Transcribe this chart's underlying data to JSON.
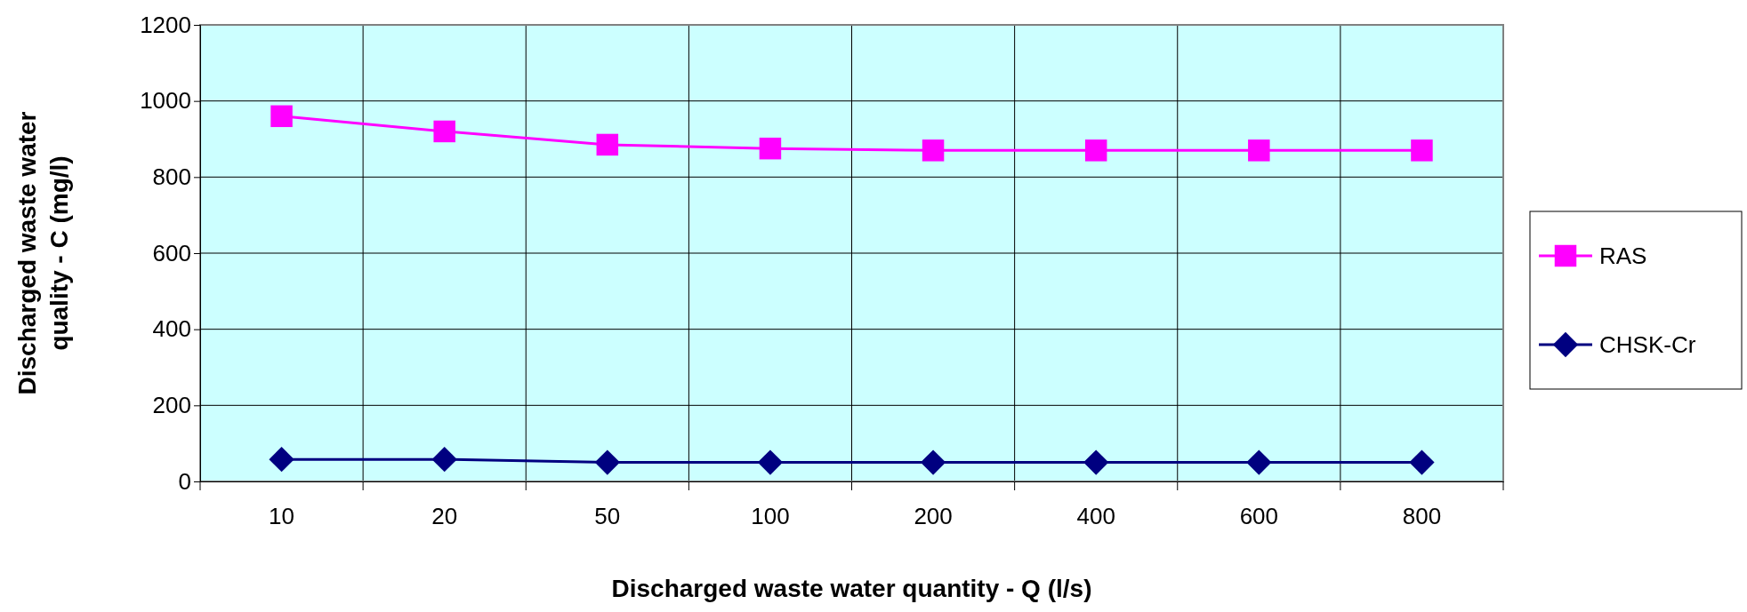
{
  "chart_data": {
    "type": "line",
    "xlabel": "Discharged waste water quantity - Q (l/s)",
    "ylabel": "Discharged waste water quality - C (mg/l)",
    "categories": [
      "10",
      "20",
      "50",
      "100",
      "200",
      "400",
      "600",
      "800"
    ],
    "ylim": [
      0,
      1200
    ],
    "yticks": [
      0,
      200,
      400,
      600,
      800,
      1000,
      1200
    ],
    "grid": true,
    "legend": "right",
    "series": [
      {
        "name": "RAS",
        "color": "#ff00ff",
        "marker": "square",
        "values": [
          960,
          920,
          885,
          875,
          870,
          870,
          870,
          870
        ]
      },
      {
        "name": "CHSK-Cr",
        "color": "#000080",
        "marker": "diamond",
        "values": [
          58,
          58,
          50,
          50,
          50,
          50,
          50,
          50
        ]
      }
    ]
  }
}
